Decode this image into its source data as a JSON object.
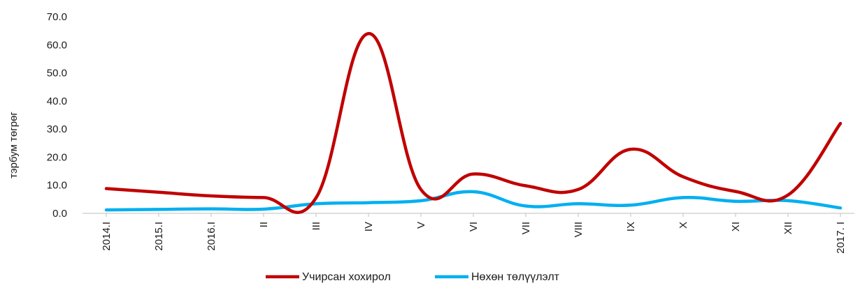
{
  "chart_data": {
    "type": "line",
    "ylabel": "тэрбум төгрөг",
    "xlabel": "",
    "ylim": [
      0,
      70
    ],
    "yticks": [
      "0.0",
      "10.0",
      "20.0",
      "30.0",
      "40.0",
      "50.0",
      "60.0",
      "70.0"
    ],
    "categories": [
      "2014.I",
      "2015.I",
      "2016.I",
      "II",
      "III",
      "IV",
      "V",
      "VI",
      "VII",
      "VIII",
      "IX",
      "X",
      "XI",
      "XII",
      "2017. I"
    ],
    "series": [
      {
        "name": "Учирсан хохирол",
        "color": "#c00000",
        "values": [
          8.8,
          7.5,
          6.2,
          5.6,
          5.5,
          64.0,
          8.5,
          14.0,
          9.8,
          8.5,
          22.8,
          13.0,
          7.8,
          6.5,
          32.0
        ]
      },
      {
        "name": "Нөхөн төлүүлэлт",
        "color": "#00b0f0",
        "values": [
          1.2,
          1.4,
          1.6,
          1.5,
          3.4,
          3.8,
          4.5,
          7.7,
          2.6,
          3.4,
          2.9,
          5.6,
          4.3,
          4.5,
          1.9
        ]
      }
    ],
    "grid": false,
    "legend_position": "bottom-center"
  }
}
